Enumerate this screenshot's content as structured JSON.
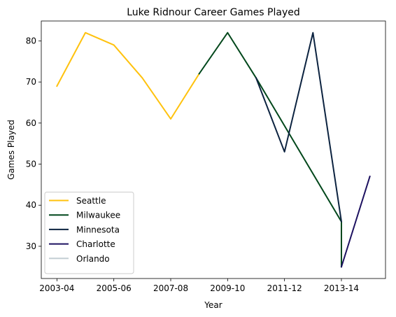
{
  "chart_data": {
    "type": "line",
    "title": "Luke Ridnour Career Games Played",
    "xlabel": "Year",
    "ylabel": "Games Played",
    "x_tick_labels": [
      "2003-04",
      "2005-06",
      "2007-08",
      "2009-10",
      "2011-12",
      "2013-14"
    ],
    "x_tick_positions": [
      0,
      2,
      4,
      6,
      8,
      10
    ],
    "y_ticks": [
      30,
      40,
      50,
      60,
      70,
      80
    ],
    "xlim": [
      -0.55,
      11.55
    ],
    "ylim": [
      22.15,
      84.85
    ],
    "grid": false,
    "legend_position": "lower-left",
    "series": [
      {
        "name": "Seattle",
        "color": "#FFC20E",
        "x": [
          0,
          1,
          2,
          3,
          4,
          5
        ],
        "y": [
          69,
          82,
          79,
          71,
          61,
          72
        ]
      },
      {
        "name": "Milwaukee",
        "color": "#00471B",
        "x": [
          5,
          6,
          7,
          10,
          10
        ],
        "y": [
          72,
          82,
          71,
          36,
          25
        ]
      },
      {
        "name": "Minnesota",
        "color": "#0C2340",
        "x": [
          7,
          8,
          9,
          10
        ],
        "y": [
          71,
          53,
          82,
          36
        ]
      },
      {
        "name": "Charlotte",
        "color": "#1D1160",
        "x": [
          10,
          11
        ],
        "y": [
          25,
          47
        ]
      },
      {
        "name": "Orlando",
        "color": "#C4CED4",
        "x": [],
        "y": []
      }
    ]
  }
}
